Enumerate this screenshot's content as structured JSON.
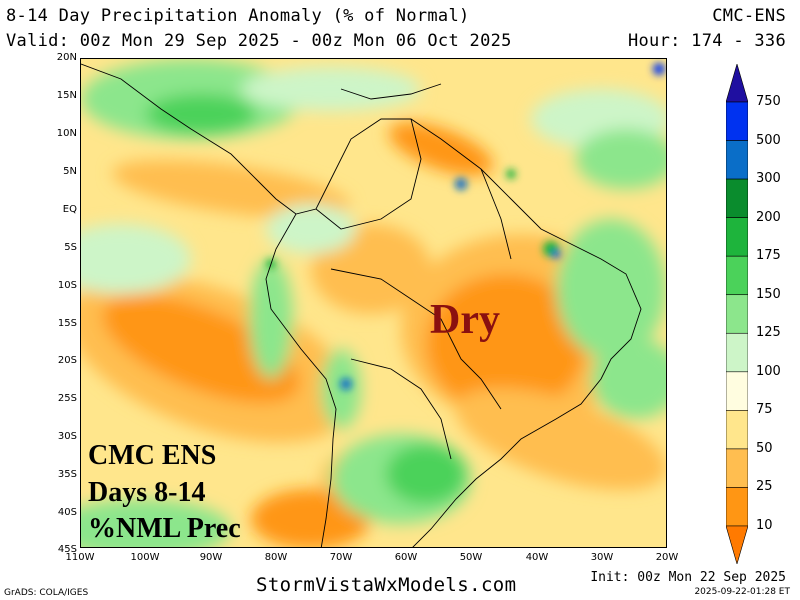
{
  "header": {
    "title": "8-14 Day Precipitation Anomaly (% of Normal)",
    "model": "CMC-ENS",
    "valid": "Valid: 00z Mon 29 Sep 2025 - 00z Mon 06 Oct 2025",
    "hour": "Hour: 174 - 336"
  },
  "axes": {
    "lat_labels": [
      "20N",
      "15N",
      "10N",
      "5N",
      "EQ",
      "5S",
      "10S",
      "15S",
      "20S",
      "25S",
      "30S",
      "35S",
      "40S",
      "45S"
    ],
    "lon_labels": [
      "110W",
      "100W",
      "90W",
      "80W",
      "70W",
      "60W",
      "50W",
      "40W",
      "30W",
      "20W"
    ],
    "lat_range": [
      -45,
      20
    ],
    "lon_range": [
      -110,
      -20
    ]
  },
  "overlay": {
    "line1": "CMC ENS",
    "line2": "Days 8-14",
    "line3": "%NML Prec",
    "dry_label": "Dry"
  },
  "colorbar": {
    "labels": [
      "750",
      "500",
      "300",
      "200",
      "175",
      "150",
      "125",
      "100",
      "75",
      "50",
      "25",
      "10"
    ],
    "colors": [
      "#1f0fa0",
      "#0032f0",
      "#0a6ec8",
      "#0a8c2d",
      "#1eb43c",
      "#4bd25a",
      "#8ce68c",
      "#cdf5c8",
      "#fffde0",
      "#ffe68c",
      "#ffbe50",
      "#ff9614",
      "#ff7a00"
    ]
  },
  "footer": {
    "site": "StormVistaWxModels.com",
    "grads": "GrADS: COLA/IGES",
    "init": "Init: 00z Mon 22 Sep 2025",
    "timestamp": "2025-09-22-01:28 ET"
  }
}
